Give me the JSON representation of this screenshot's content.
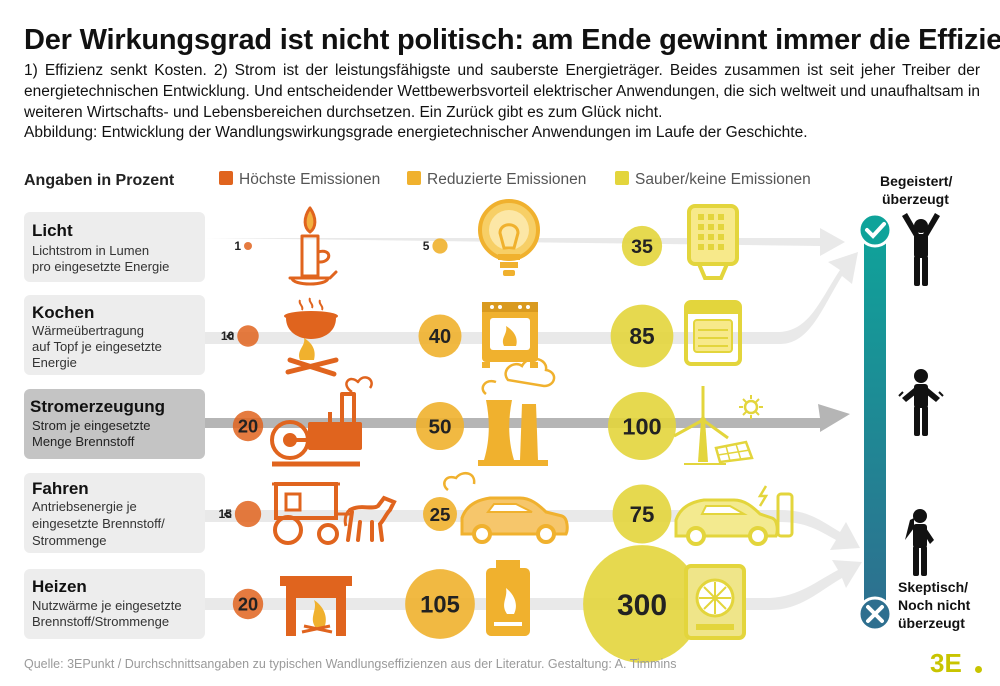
{
  "title": "Der Wirkungsgrad ist nicht politisch: am Ende gewinnt immer die Effizienz",
  "intro": "1) Effizienz senkt Kosten. 2) Strom ist der leistungsfähigste und sauberste Energieträger. Beides zusammen ist seit jeher Treiber der energietechnischen Entwicklung. Und entscheidender Wettbewerbsvorteil elektrischer Anwendungen, die sich weltweit und unaufhaltsam in weiteren Wirtschafts- und Lebensbereichen durchsetzen. Ein Zurück gibt es zum Glück nicht.",
  "caption": "Abbildung: Entwicklung der Wandlungswirkungsgrade energietechnischer Anwendungen im Laufe der Geschichte.",
  "footer": "Quelle: 3EPunkt / Durchschnittsangaben zu typischen Wandlungseffizienzen aus der Literatur. Gestaltung: A. Timmins",
  "logo": "3E",
  "colors": {
    "high": "#e0641e",
    "reduced": "#f0b12e",
    "clean": "#e3d53c",
    "track": "#e6e6e6",
    "scale_top": "#0fa39a",
    "scale_bottom": "#2e6f8f"
  },
  "chart_data": {
    "type": "table",
    "unit_label": "Angaben in Prozent",
    "legend": [
      "Höchste Emissionen",
      "Reduzierte Emissionen",
      "Sauber/keine Emissionen"
    ],
    "rows": [
      {
        "name": "Licht",
        "desc": [
          "Lichtstrom in Lumen",
          "pro eingesetzte Energie"
        ],
        "values": [
          {
            "label": "1",
            "prefix": "",
            "value": 1
          },
          {
            "label": "5",
            "prefix": "",
            "value": 5
          },
          {
            "label": "35",
            "prefix": "",
            "value": 35
          }
        ]
      },
      {
        "name": "Kochen",
        "desc": [
          "Wärmeübertragung",
          "auf Topf je eingesetzte",
          "Energie"
        ],
        "values": [
          {
            "label": "10",
            "prefix": "<",
            "value": 10
          },
          {
            "label": "40",
            "prefix": "",
            "value": 40
          },
          {
            "label": "85",
            "prefix": "",
            "value": 85
          }
        ]
      },
      {
        "name": "Stromerzeugung",
        "desc": [
          "Strom je eingesetzte",
          "Menge Brennstoff"
        ],
        "values": [
          {
            "label": "20",
            "prefix": "",
            "value": 20
          },
          {
            "label": "50",
            "prefix": "",
            "value": 50
          },
          {
            "label": "100",
            "prefix": "",
            "value": 100
          }
        ]
      },
      {
        "name": "Fahren",
        "desc": [
          "Antriebsenergie je",
          "eingesetzte Brennstoff/",
          "Strommenge"
        ],
        "values": [
          {
            "label": "15",
            "prefix": "<",
            "value": 15
          },
          {
            "label": "25",
            "prefix": "",
            "value": 25
          },
          {
            "label": "75",
            "prefix": "",
            "value": 75
          }
        ]
      },
      {
        "name": "Heizen",
        "desc": [
          "Nutzwärme je eingesetzte",
          "Brennstoff/Strommenge"
        ],
        "values": [
          {
            "label": "20",
            "prefix": "",
            "value": 20
          },
          {
            "label": "105",
            "prefix": "",
            "value": 105
          },
          {
            "label": "300",
            "prefix": "",
            "value": 300
          }
        ]
      }
    ],
    "scale_top_label": [
      "Begeistert/",
      "überzeugt"
    ],
    "scale_bottom_label": [
      "Skeptisch/",
      "Noch nicht",
      "überzeugt"
    ]
  },
  "icons": [
    "candle-icon",
    "bulb-icon",
    "led-lamp-icon",
    "cooking-pot-fire-icon",
    "stove-icon",
    "electric-oven-icon",
    "steam-engine-icon",
    "power-plant-icon",
    "wind-solar-icon",
    "horse-carriage-icon",
    "combustion-car-icon",
    "electric-car-icon",
    "fireplace-icon",
    "gas-boiler-icon",
    "heat-pump-icon",
    "person-enthusiastic-icon",
    "person-neutral-icon",
    "person-skeptical-icon",
    "check-icon",
    "cross-icon"
  ]
}
